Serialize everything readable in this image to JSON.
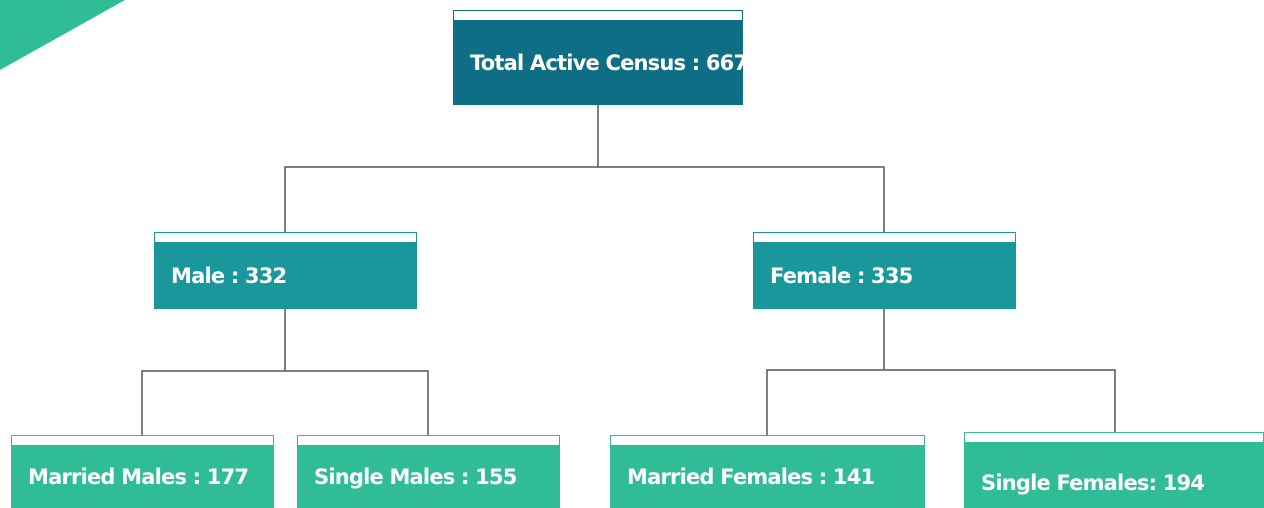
{
  "nodes": [
    {
      "label": "Total Active Census :  667"
    },
    {
      "label": "Male : 332"
    },
    {
      "label": "Female :  335"
    },
    {
      "label": "Married Males : 177"
    },
    {
      "label": "Single Males : 155"
    },
    {
      "label": "Married Females : 141"
    },
    {
      "label": "Single Females: 194"
    }
  ]
}
